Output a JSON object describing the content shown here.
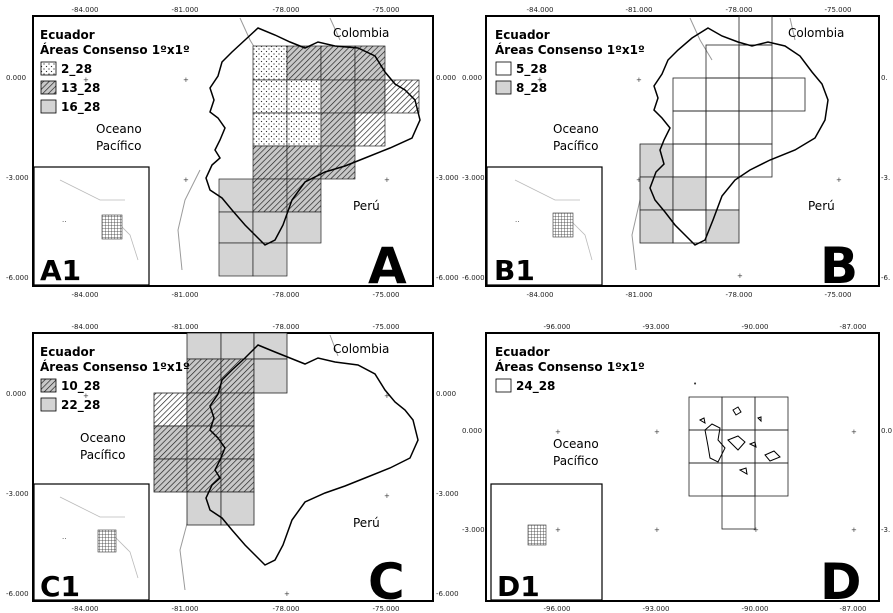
{
  "figure": {
    "panels": [
      {
        "id": "A",
        "inset_label": "A1",
        "title": "Ecuador",
        "subtitle": "Áreas Consenso 1ºx1º",
        "legend": [
          {
            "label": "2_28",
            "pattern": "dots"
          },
          {
            "label": "13_28",
            "pattern": "hatch"
          },
          {
            "label": "16_28",
            "pattern": "gray"
          }
        ],
        "places": {
          "north": "Colombia",
          "south": "Perú",
          "ocean_1": "Oceano",
          "ocean_2": "Pacífico"
        },
        "x_ticks_top": [
          "-84.000",
          "-81.000",
          "-78.000",
          "-75.000"
        ],
        "x_ticks_bottom": [
          "-84.000",
          "-81.000",
          "-78.000",
          "-75.000"
        ],
        "y_ticks_left": [
          "0.000",
          "-3.000",
          "-6.000"
        ],
        "y_ticks_right": [
          "0.000",
          "-3.000",
          "-6.000"
        ]
      },
      {
        "id": "B",
        "inset_label": "B1",
        "title": "Ecuador",
        "subtitle": "Áreas Consenso 1ºx1º",
        "legend": [
          {
            "label": "5_28",
            "pattern": "empty"
          },
          {
            "label": "8_28",
            "pattern": "gray"
          }
        ],
        "places": {
          "north": "Colombia",
          "south": "Perú",
          "ocean_1": "Oceano",
          "ocean_2": "Pacífico"
        },
        "x_ticks_top": [
          "-84.000",
          "-81.000",
          "-78.000",
          "-75.000"
        ],
        "x_ticks_bottom": [
          "-84.000",
          "-81.000",
          "-78.000",
          "-75.000"
        ],
        "y_ticks_left": [
          "0.000",
          "-3.000",
          "-6.000"
        ],
        "y_ticks_right": [
          "0.",
          "-3.",
          "-6."
        ]
      },
      {
        "id": "C",
        "inset_label": "C1",
        "title": "Ecuador",
        "subtitle": "Áreas Consenso 1ºx1º",
        "legend": [
          {
            "label": "10_28",
            "pattern": "hatch"
          },
          {
            "label": "22_28",
            "pattern": "gray"
          }
        ],
        "places": {
          "north": "Colombia",
          "south": "Perú",
          "ocean_1": "Oceano",
          "ocean_2": "Pacífico"
        },
        "x_ticks_top": [
          "-84.000",
          "-81.000",
          "-78.000",
          "-75.000"
        ],
        "x_ticks_bottom": [
          "-84.000",
          "-81.000",
          "-78.000",
          "-75.000"
        ],
        "y_ticks_left": [
          "0.000",
          "-3.000",
          "-6.000"
        ],
        "y_ticks_right": [
          "0.000",
          "-3.000",
          "-6.000"
        ]
      },
      {
        "id": "D",
        "inset_label": "D1",
        "title": "Ecuador",
        "subtitle": "Áreas Consenso 1ºx1º",
        "legend": [
          {
            "label": "24_28",
            "pattern": "empty"
          }
        ],
        "places": {
          "north": "",
          "south": "",
          "ocean_1": "Oceano",
          "ocean_2": "Pacífico"
        },
        "x_ticks_top": [
          "-96.000",
          "-93.000",
          "-90.000",
          "-87.000"
        ],
        "x_ticks_bottom": [
          "-96.000",
          "-93.000",
          "-90.000",
          "-87.000"
        ],
        "y_ticks_left": [
          "0.000",
          "-3.000"
        ],
        "y_ticks_right": [
          "0.0",
          "-3."
        ]
      }
    ]
  }
}
